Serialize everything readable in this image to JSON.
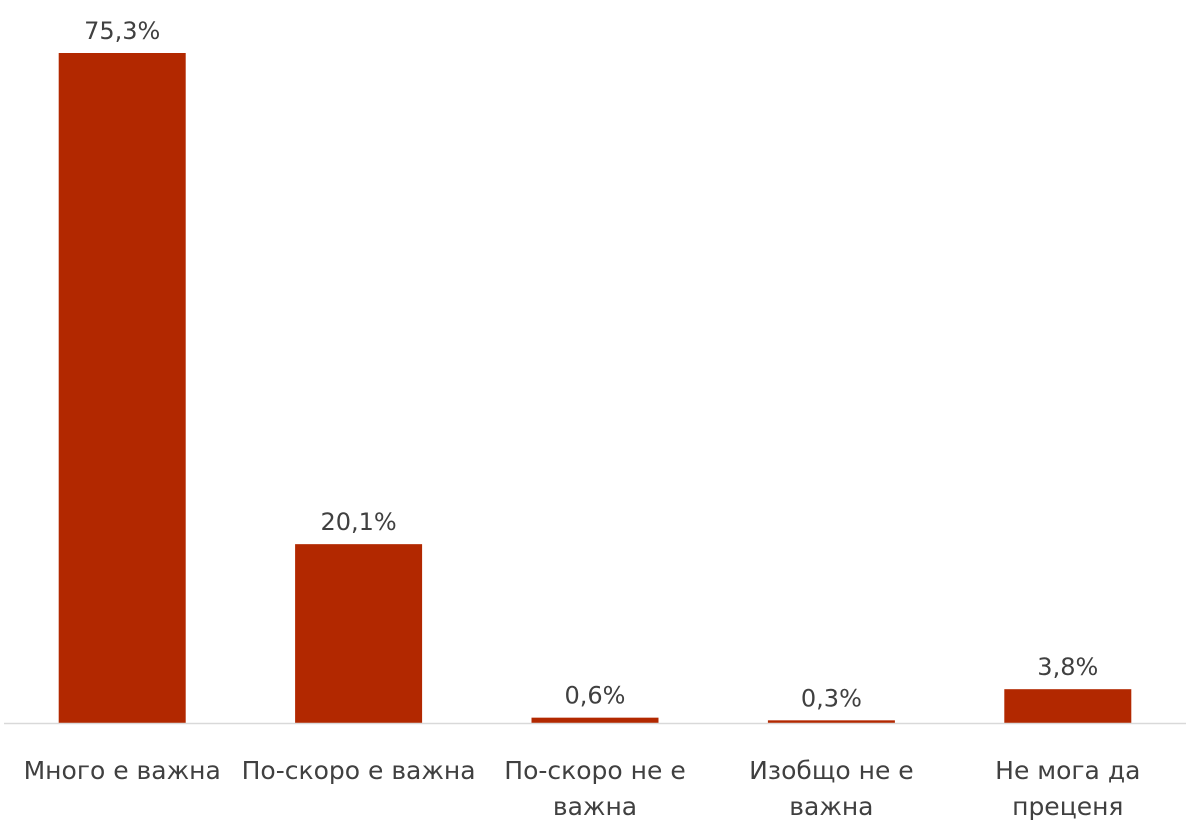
{
  "chart_data": {
    "type": "bar",
    "categories": [
      "Много е важна",
      "По-скоро е важна",
      "По-скоро не е важна",
      "Изобщо не е важна",
      "Не мога да преценя"
    ],
    "category_lines": [
      [
        "Много е важна"
      ],
      [
        "По-скоро е важна"
      ],
      [
        "По-скоро не е",
        "важна"
      ],
      [
        "Изобщо не е",
        "важна"
      ],
      [
        "Не мога да",
        "преценя"
      ]
    ],
    "values": [
      75.3,
      20.1,
      0.6,
      0.3,
      3.8
    ],
    "data_labels": [
      "75,3%",
      "20,1%",
      "0,6%",
      "0,3%",
      "3,8%"
    ],
    "title": "",
    "xlabel": "",
    "ylabel": "",
    "ylim": [
      0,
      75.3
    ],
    "grid": false,
    "legend": "none",
    "colors": {
      "bar": "#B22800",
      "axis": "#D9D9D9",
      "text": "#404040"
    }
  }
}
